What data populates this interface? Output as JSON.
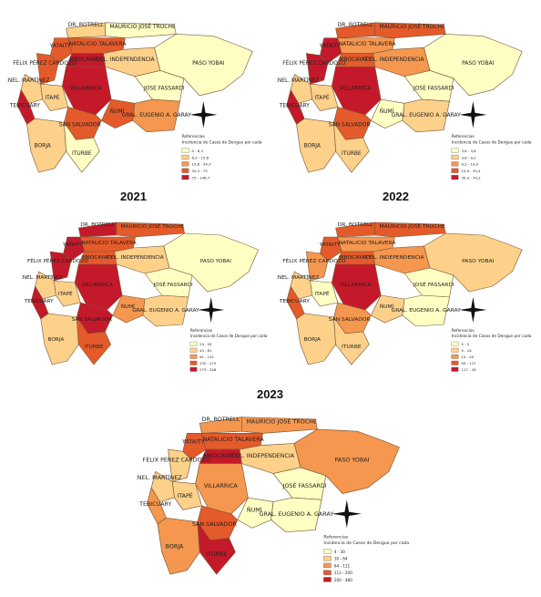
{
  "year_labels": [
    "2021",
    "2022",
    "2023"
  ],
  "place_names": [
    "DR. BOTRELL",
    "MAURICIO JOSÉ TROCHE",
    "YATAITY",
    "NATALICIO TALAVERA",
    "FÉLIX PÉREZ CARDOZO",
    "MBOCAYATY",
    "CNEL. MARTÍNEZ",
    "TEBICUARY",
    "COL. INDEPENDENCIA",
    "PASO YOBAI",
    "ITAPÉ",
    "VILLARRICA",
    "JOSÉ FASSARDI",
    "ÑUMÍ",
    "GRAL. EUGENIO A. GARAY",
    "SAN SALVADOR",
    "BORJA",
    "ITURBE"
  ],
  "panels": [
    {
      "legend_title": "Referencias",
      "legend_subtitle": "Incidencia de Casos de Dengue por cada 10.000 Habitantes",
      "legend_items": [
        "0 - 6,3",
        "6,3 - 15,8",
        "15,8 - 34,3",
        "34,3 - 75",
        "75 - 146,7"
      ],
      "colors": [
        "#ffffc4",
        "#fed18a",
        "#f5974f",
        "#e55a2a",
        "#c4192a"
      ],
      "muni_class": [
        1,
        0,
        3,
        3,
        3,
        4,
        1,
        4,
        1,
        0,
        1,
        4,
        0,
        3,
        2,
        3,
        1,
        0
      ]
    },
    {
      "legend_title": "Referencias",
      "legend_subtitle": "Incidencia de Casos de Dengue por cada 10.000 Habitantes",
      "legend_items": [
        "3,6 - 3,6",
        "3,6 - 9,2",
        "9,2 - 19,9",
        "19,9 - 35,4",
        "35,4 - 74,2"
      ],
      "colors": [
        "#ffffc4",
        "#fed18a",
        "#f5974f",
        "#e55a2a",
        "#c4192a"
      ],
      "muni_class": [
        3,
        3,
        4,
        2,
        4,
        3,
        1,
        4,
        2,
        0,
        1,
        4,
        0,
        0,
        1,
        3,
        1,
        1
      ]
    },
    {
      "legend_title": "Referencias",
      "legend_subtitle": "Incidencia de Casos de Dengue por cada 10.000 Habitantes",
      "legend_items": [
        "24 - 43",
        "43 - 81",
        "81 - 132",
        "132 - 273",
        "273 - 348"
      ],
      "colors": [
        "#ffffc4",
        "#fed18a",
        "#f5974f",
        "#e55a2a",
        "#c4192a"
      ],
      "muni_class": [
        4,
        3,
        4,
        3,
        4,
        3,
        1,
        4,
        1,
        0,
        1,
        4,
        0,
        2,
        1,
        4,
        1,
        3
      ]
    },
    {
      "legend_title": "Referencias",
      "legend_subtitle": "Incidencia de Casos de Dengue por cada 10.000 Habitantes",
      "legend_items": [
        "0 - 5",
        "5 - 14",
        "14 - 55",
        "55 - 117",
        "117 - 18"
      ],
      "colors": [
        "#ffffc4",
        "#fed18a",
        "#f5974f",
        "#e55a2a",
        "#c4192a"
      ],
      "muni_class": [
        3,
        3,
        3,
        2,
        2,
        3,
        1,
        3,
        2,
        1,
        0,
        4,
        0,
        1,
        0,
        2,
        1,
        1
      ]
    },
    {
      "legend_title": "Referencias",
      "legend_subtitle": "Incidencia de Casos de Dengue por cada 10.000 Habitantes",
      "legend_items": [
        "4 - 30",
        "30 - 64",
        "64 - 111",
        "111 - 200",
        "200 - 480"
      ],
      "colors": [
        "#ffffc4",
        "#fed18a",
        "#f5974f",
        "#e55a2a",
        "#c4192a"
      ],
      "muni_class": [
        2,
        2,
        3,
        3,
        1,
        4,
        1,
        2,
        1,
        2,
        1,
        2,
        0,
        0,
        0,
        3,
        2,
        4
      ]
    }
  ]
}
